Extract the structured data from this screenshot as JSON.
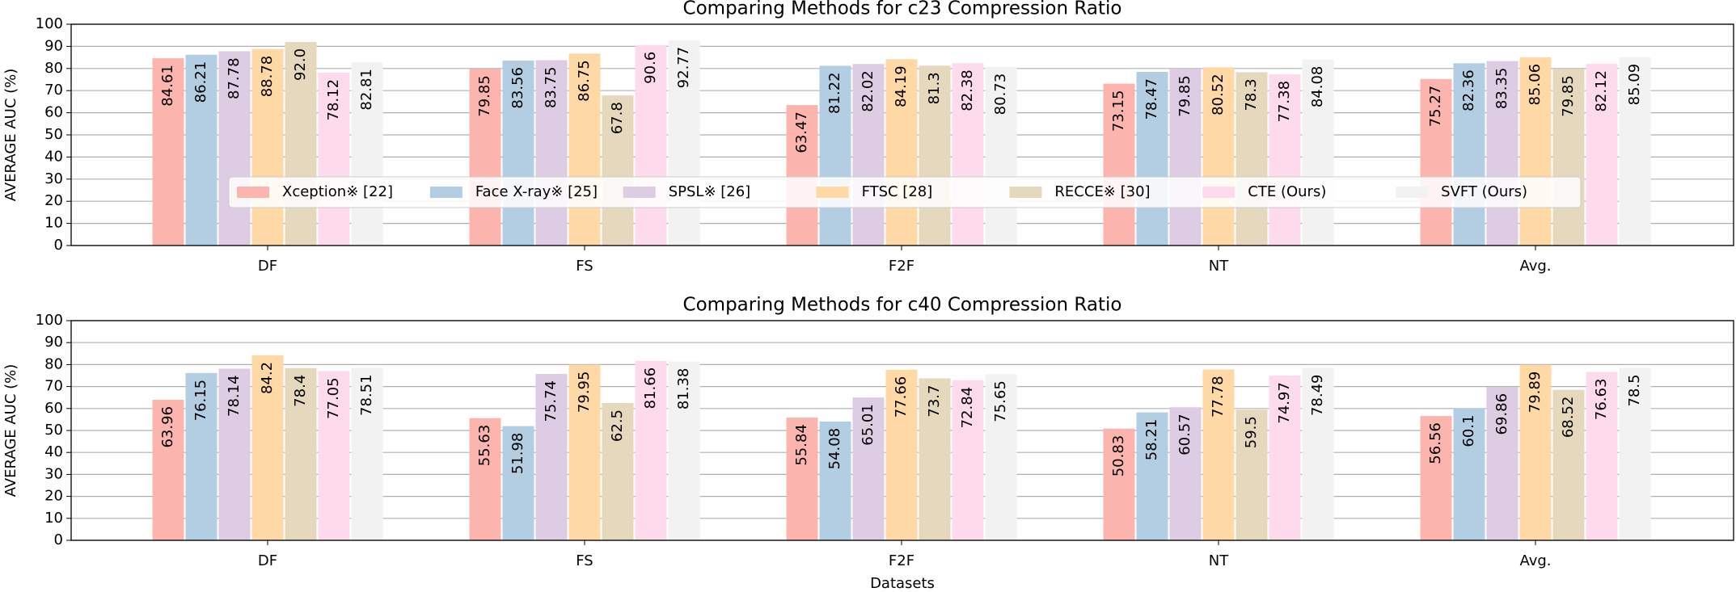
{
  "chart_data": [
    {
      "type": "bar",
      "title": "Comparing Methods for c23 Compression Ratio",
      "ylabel": "AVERAGE AUC (%)",
      "categories": [
        "DF",
        "FS",
        "F2F",
        "NT",
        "Avg."
      ],
      "ylim": [
        0,
        100
      ],
      "yticks": [
        0,
        10,
        20,
        30,
        40,
        50,
        60,
        70,
        80,
        90,
        100
      ],
      "grid": true,
      "legend": "center",
      "series": [
        {
          "name": "Xception※ [22]",
          "color": "#fbb4ae",
          "values": [
            84.61,
            79.85,
            63.47,
            73.15,
            75.27
          ]
        },
        {
          "name": "Face X-ray※ [25]",
          "color": "#b3cde3",
          "values": [
            86.21,
            83.56,
            81.22,
            78.47,
            82.36
          ]
        },
        {
          "name": "SPSL※ [26]",
          "color": "#decbe4",
          "values": [
            87.78,
            83.75,
            82.02,
            79.85,
            83.35
          ]
        },
        {
          "name": "FTSC [28]",
          "color": "#fed9a6",
          "values": [
            88.78,
            86.75,
            84.19,
            80.52,
            85.06
          ]
        },
        {
          "name": "RECCE※ [30]",
          "color": "#e5d8bd",
          "values": [
            92.0,
            67.8,
            81.3,
            78.3,
            79.85
          ],
          "value_labels": [
            "92.0",
            "67.8",
            "81.3",
            "78.3",
            "79.85"
          ]
        },
        {
          "name": "CTE (Ours)",
          "color": "#fddaec",
          "values": [
            78.12,
            90.6,
            82.38,
            77.38,
            82.12
          ]
        },
        {
          "name": "SVFT (Ours)",
          "color": "#f2f2f2",
          "values": [
            82.81,
            92.77,
            80.73,
            84.08,
            85.09
          ]
        }
      ]
    },
    {
      "type": "bar",
      "title": "Comparing Methods for c40 Compression Ratio",
      "ylabel": "AVERAGE AUC (%)",
      "xlabel": "Datasets",
      "categories": [
        "DF",
        "FS",
        "F2F",
        "NT",
        "Avg."
      ],
      "ylim": [
        0,
        100
      ],
      "yticks": [
        0,
        10,
        20,
        30,
        40,
        50,
        60,
        70,
        80,
        90,
        100
      ],
      "grid": true,
      "series": [
        {
          "color": "#fbb4ae",
          "values": [
            63.96,
            55.63,
            55.84,
            50.83,
            56.56
          ]
        },
        {
          "color": "#b3cde3",
          "values": [
            76.15,
            51.98,
            54.08,
            58.21,
            60.1
          ]
        },
        {
          "color": "#decbe4",
          "values": [
            78.14,
            75.74,
            65.01,
            60.57,
            69.86
          ]
        },
        {
          "color": "#fed9a6",
          "values": [
            84.2,
            79.95,
            77.66,
            77.78,
            79.89
          ]
        },
        {
          "color": "#e5d8bd",
          "values": [
            78.4,
            62.5,
            73.7,
            59.5,
            68.52
          ]
        },
        {
          "color": "#fddaec",
          "values": [
            77.05,
            81.66,
            72.84,
            74.97,
            76.63
          ]
        },
        {
          "color": "#f2f2f2",
          "values": [
            78.51,
            81.38,
            75.65,
            78.49,
            78.5
          ]
        }
      ]
    }
  ]
}
